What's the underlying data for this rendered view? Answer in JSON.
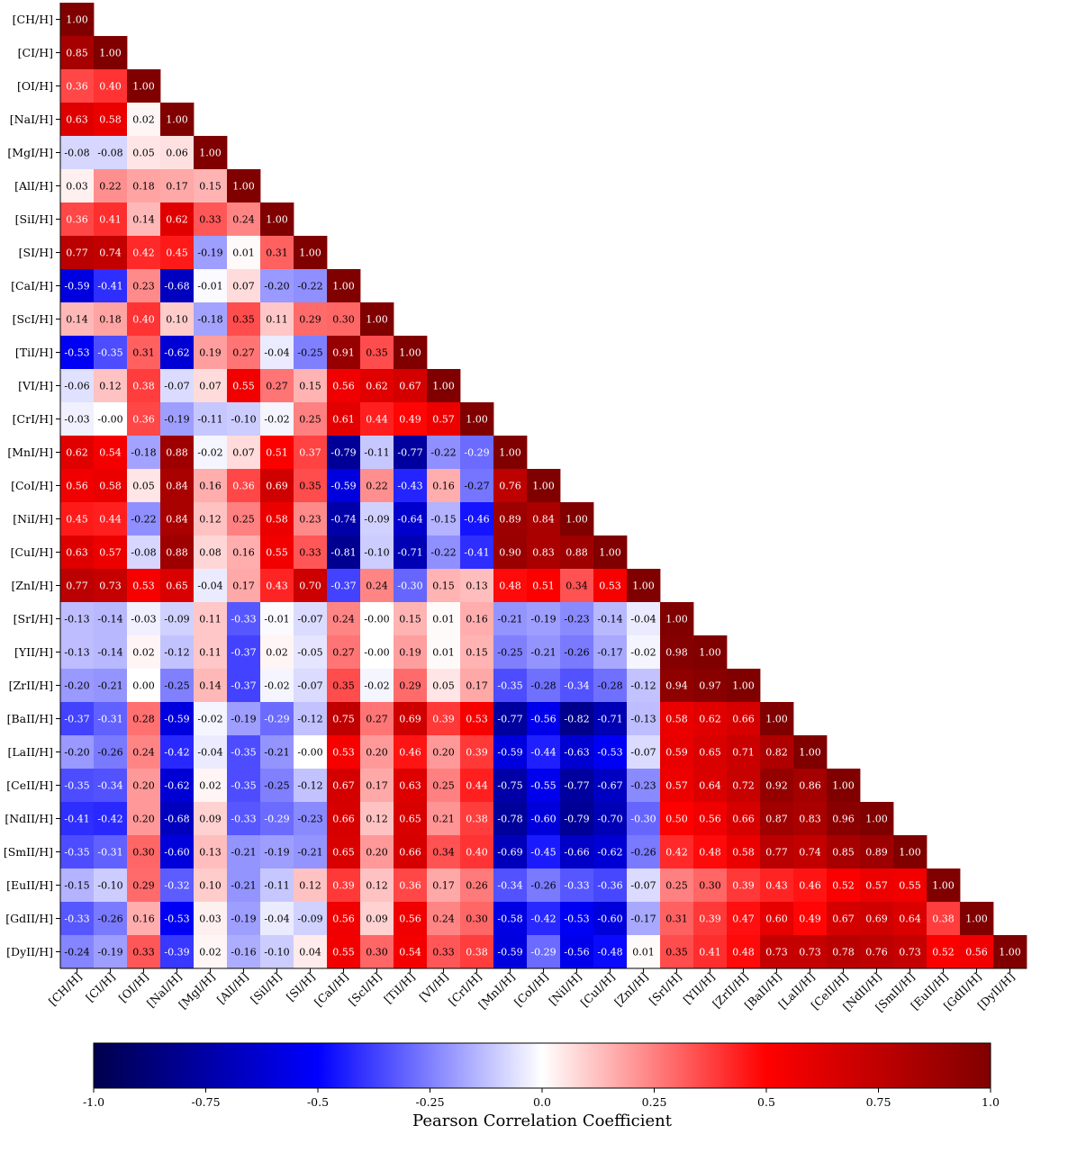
{
  "chart_data": {
    "type": "heatmap",
    "title": "",
    "labels": [
      "[CH/H]",
      "[CI/H]",
      "[OI/H]",
      "[NaI/H]",
      "[MgI/H]",
      "[AlI/H]",
      "[SiI/H]",
      "[SI/H]",
      "[CaI/H]",
      "[ScI/H]",
      "[TiI/H]",
      "[VI/H]",
      "[CrI/H]",
      "[MnI/H]",
      "[CoI/H]",
      "[NiI/H]",
      "[CuI/H]",
      "[ZnI/H]",
      "[SrI/H]",
      "[YII/H]",
      "[ZrII/H]",
      "[BaII/H]",
      "[LaII/H]",
      "[CeII/H]",
      "[NdII/H]",
      "[SmII/H]",
      "[EuII/H]",
      "[GdII/H]",
      "[DyII/H]"
    ],
    "matrix_lower_triangle": [
      [
        1.0
      ],
      [
        0.85,
        1.0
      ],
      [
        0.36,
        0.4,
        1.0
      ],
      [
        0.63,
        0.58,
        0.02,
        1.0
      ],
      [
        -0.08,
        -0.08,
        0.05,
        0.06,
        1.0
      ],
      [
        0.03,
        0.22,
        0.18,
        0.17,
        0.15,
        1.0
      ],
      [
        0.36,
        0.41,
        0.14,
        0.62,
        0.33,
        0.24,
        1.0
      ],
      [
        0.77,
        0.74,
        0.42,
        0.45,
        -0.19,
        0.01,
        0.31,
        1.0
      ],
      [
        -0.59,
        -0.41,
        0.23,
        -0.68,
        -0.01,
        0.07,
        -0.2,
        -0.22,
        1.0
      ],
      [
        0.14,
        0.18,
        0.4,
        0.1,
        -0.18,
        0.35,
        0.11,
        0.29,
        0.3,
        1.0
      ],
      [
        -0.53,
        -0.35,
        0.31,
        -0.62,
        0.19,
        0.27,
        -0.04,
        -0.25,
        0.91,
        0.35,
        1.0
      ],
      [
        -0.06,
        0.12,
        0.38,
        -0.07,
        0.07,
        0.55,
        0.27,
        0.15,
        0.56,
        0.62,
        0.67,
        1.0
      ],
      [
        -0.03,
        -0.0,
        0.36,
        -0.19,
        -0.11,
        -0.1,
        -0.02,
        0.25,
        0.61,
        0.44,
        0.49,
        0.57,
        1.0
      ],
      [
        0.62,
        0.54,
        -0.18,
        0.88,
        -0.02,
        0.07,
        0.51,
        0.37,
        -0.79,
        -0.11,
        -0.77,
        -0.22,
        -0.29,
        1.0
      ],
      [
        0.56,
        0.58,
        0.05,
        0.84,
        0.16,
        0.36,
        0.69,
        0.35,
        -0.59,
        0.22,
        -0.43,
        0.16,
        -0.27,
        0.76,
        1.0
      ],
      [
        0.45,
        0.44,
        -0.22,
        0.84,
        0.12,
        0.25,
        0.58,
        0.23,
        -0.74,
        -0.09,
        -0.64,
        -0.15,
        -0.46,
        0.89,
        0.84,
        1.0
      ],
      [
        0.63,
        0.57,
        -0.08,
        0.88,
        0.08,
        0.16,
        0.55,
        0.33,
        -0.81,
        -0.1,
        -0.71,
        -0.22,
        -0.41,
        0.9,
        0.83,
        0.88,
        1.0
      ],
      [
        0.77,
        0.73,
        0.53,
        0.65,
        -0.04,
        0.17,
        0.43,
        0.7,
        -0.37,
        0.24,
        -0.3,
        0.15,
        0.13,
        0.48,
        0.51,
        0.34,
        0.53,
        1.0
      ],
      [
        -0.13,
        -0.14,
        -0.03,
        -0.09,
        0.11,
        -0.33,
        -0.01,
        -0.07,
        0.24,
        -0.0,
        0.15,
        0.01,
        0.16,
        -0.21,
        -0.19,
        -0.23,
        -0.14,
        -0.04,
        1.0
      ],
      [
        -0.13,
        -0.14,
        0.02,
        -0.12,
        0.11,
        -0.37,
        0.02,
        -0.05,
        0.27,
        -0.0,
        0.19,
        0.01,
        0.15,
        -0.25,
        -0.21,
        -0.26,
        -0.17,
        -0.02,
        0.98,
        1.0
      ],
      [
        -0.2,
        -0.21,
        0.0,
        -0.25,
        0.14,
        -0.37,
        -0.02,
        -0.07,
        0.35,
        -0.02,
        0.29,
        0.05,
        0.17,
        -0.35,
        -0.28,
        -0.34,
        -0.28,
        -0.12,
        0.94,
        0.97,
        1.0
      ],
      [
        -0.37,
        -0.31,
        0.28,
        -0.59,
        -0.02,
        -0.19,
        -0.29,
        -0.12,
        0.75,
        0.27,
        0.69,
        0.39,
        0.53,
        -0.77,
        -0.56,
        -0.82,
        -0.71,
        -0.13,
        0.58,
        0.62,
        0.66,
        1.0
      ],
      [
        -0.2,
        -0.26,
        0.24,
        -0.42,
        -0.04,
        -0.35,
        -0.21,
        -0.0,
        0.53,
        0.2,
        0.46,
        0.2,
        0.39,
        -0.59,
        -0.44,
        -0.63,
        -0.53,
        -0.07,
        0.59,
        0.65,
        0.71,
        0.82,
        1.0
      ],
      [
        -0.35,
        -0.34,
        0.2,
        -0.62,
        0.02,
        -0.35,
        -0.25,
        -0.12,
        0.67,
        0.17,
        0.63,
        0.25,
        0.44,
        -0.75,
        -0.55,
        -0.77,
        -0.67,
        -0.23,
        0.57,
        0.64,
        0.72,
        0.92,
        0.86,
        1.0
      ],
      [
        -0.41,
        -0.42,
        0.2,
        -0.68,
        0.09,
        -0.33,
        -0.29,
        -0.23,
        0.66,
        0.12,
        0.65,
        0.21,
        0.38,
        -0.78,
        -0.6,
        -0.79,
        -0.7,
        -0.3,
        0.5,
        0.56,
        0.66,
        0.87,
        0.83,
        0.96,
        1.0
      ],
      [
        -0.35,
        -0.31,
        0.3,
        -0.6,
        0.13,
        -0.21,
        -0.19,
        -0.21,
        0.65,
        0.2,
        0.66,
        0.34,
        0.4,
        -0.69,
        -0.45,
        -0.66,
        -0.62,
        -0.26,
        0.42,
        0.48,
        0.58,
        0.77,
        0.74,
        0.85,
        0.89,
        1.0
      ],
      [
        -0.15,
        -0.1,
        0.29,
        -0.32,
        0.1,
        -0.21,
        -0.11,
        0.12,
        0.39,
        0.12,
        0.36,
        0.17,
        0.26,
        -0.34,
        -0.26,
        -0.33,
        -0.36,
        -0.07,
        0.25,
        0.3,
        0.39,
        0.43,
        0.46,
        0.52,
        0.57,
        0.55,
        1.0
      ],
      [
        -0.33,
        -0.26,
        0.16,
        -0.53,
        0.03,
        -0.19,
        -0.04,
        -0.09,
        0.56,
        0.09,
        0.56,
        0.24,
        0.3,
        -0.58,
        -0.42,
        -0.53,
        -0.6,
        -0.17,
        0.31,
        0.39,
        0.47,
        0.6,
        0.49,
        0.67,
        0.69,
        0.64,
        0.38,
        1.0
      ],
      [
        -0.24,
        -0.19,
        0.33,
        -0.39,
        0.02,
        -0.16,
        -0.1,
        0.04,
        0.55,
        0.3,
        0.54,
        0.33,
        0.38,
        -0.59,
        -0.29,
        -0.56,
        -0.48,
        0.01,
        0.35,
        0.41,
        0.48,
        0.73,
        0.73,
        0.78,
        0.76,
        0.73,
        0.52,
        0.56,
        1.0
      ]
    ],
    "cell_text": [
      [
        "1.00"
      ],
      [
        "0.85",
        "1.00"
      ],
      [
        "0.36",
        "0.40",
        "1.00"
      ],
      [
        "0.63",
        "0.58",
        "0.02",
        "1.00"
      ],
      [
        "-0.08",
        "-0.08",
        "0.05",
        "0.06",
        "1.00"
      ],
      [
        "0.03",
        "0.22",
        "0.18",
        "0.17",
        "0.15",
        "1.00"
      ],
      [
        "0.36",
        "0.41",
        "0.14",
        "0.62",
        "0.33",
        "0.24",
        "1.00"
      ],
      [
        "0.77",
        "0.74",
        "0.42",
        "0.45",
        "-0.19",
        "0.01",
        "0.31",
        "1.00"
      ],
      [
        "-0.59",
        "-0.41",
        "0.23",
        "-0.68",
        "-0.01",
        "0.07",
        "-0.20",
        "-0.22",
        "1.00"
      ],
      [
        "0.14",
        "0.18",
        "0.40",
        "0.10",
        "-0.18",
        "0.35",
        "0.11",
        "0.29",
        "0.30",
        "1.00"
      ],
      [
        "-0.53",
        "-0.35",
        "0.31",
        "-0.62",
        "0.19",
        "0.27",
        "-0.04",
        "-0.25",
        "0.91",
        "0.35",
        "1.00"
      ],
      [
        "-0.06",
        "0.12",
        "0.38",
        "-0.07",
        "0.07",
        "0.55",
        "0.27",
        "0.15",
        "0.56",
        "0.62",
        "0.67",
        "1.00"
      ],
      [
        "-0.03",
        "-0.00",
        "0.36",
        "-0.19",
        "-0.11",
        "-0.10",
        "-0.02",
        "0.25",
        "0.61",
        "0.44",
        "0.49",
        "0.57",
        "1.00"
      ],
      [
        "0.62",
        "0.54",
        "-0.18",
        "0.88",
        "-0.02",
        "0.07",
        "0.51",
        "0.37",
        "-0.79",
        "-0.11",
        "-0.77",
        "-0.22",
        "-0.29",
        "1.00"
      ],
      [
        "0.56",
        "0.58",
        "0.05",
        "0.84",
        "0.16",
        "0.36",
        "0.69",
        "0.35",
        "-0.59",
        "0.22",
        "-0.43",
        "0.16",
        "-0.27",
        "0.76",
        "1.00"
      ],
      [
        "0.45",
        "0.44",
        "-0.22",
        "0.84",
        "0.12",
        "0.25",
        "0.58",
        "0.23",
        "-0.74",
        "-0.09",
        "-0.64",
        "-0.15",
        "-0.46",
        "0.89",
        "0.84",
        "1.00"
      ],
      [
        "0.63",
        "0.57",
        "-0.08",
        "0.88",
        "0.08",
        "0.16",
        "0.55",
        "0.33",
        "-0.81",
        "-0.10",
        "-0.71",
        "-0.22",
        "-0.41",
        "0.90",
        "0.83",
        "0.88",
        "1.00"
      ],
      [
        "0.77",
        "0.73",
        "0.53",
        "0.65",
        "-0.04",
        "0.17",
        "0.43",
        "0.70",
        "-0.37",
        "0.24",
        "-0.30",
        "0.15",
        "0.13",
        "0.48",
        "0.51",
        "0.34",
        "0.53",
        "1.00"
      ],
      [
        "-0.13",
        "-0.14",
        "-0.03",
        "-0.09",
        "0.11",
        "-0.33",
        "-0.01",
        "-0.07",
        "0.24",
        "-0.00",
        "0.15",
        "0.01",
        "0.16",
        "-0.21",
        "-0.19",
        "-0.23",
        "-0.14",
        "-0.04",
        "1.00"
      ],
      [
        "-0.13",
        "-0.14",
        "0.02",
        "-0.12",
        "0.11",
        "-0.37",
        "0.02",
        "-0.05",
        "0.27",
        "-0.00",
        "0.19",
        "0.01",
        "0.15",
        "-0.25",
        "-0.21",
        "-0.26",
        "-0.17",
        "-0.02",
        "0.98",
        "1.00"
      ],
      [
        "-0.20",
        "-0.21",
        "0.00",
        "-0.25",
        "0.14",
        "-0.37",
        "-0.02",
        "-0.07",
        "0.35",
        "-0.02",
        "0.29",
        "0.05",
        "0.17",
        "-0.35",
        "-0.28",
        "-0.34",
        "-0.28",
        "-0.12",
        "0.94",
        "0.97",
        "1.00"
      ],
      [
        "-0.37",
        "-0.31",
        "0.28",
        "-0.59",
        "-0.02",
        "-0.19",
        "-0.29",
        "-0.12",
        "0.75",
        "0.27",
        "0.69",
        "0.39",
        "0.53",
        "-0.77",
        "-0.56",
        "-0.82",
        "-0.71",
        "-0.13",
        "0.58",
        "0.62",
        "0.66",
        "1.00"
      ],
      [
        "-0.20",
        "-0.26",
        "0.24",
        "-0.42",
        "-0.04",
        "-0.35",
        "-0.21",
        "-0.00",
        "0.53",
        "0.20",
        "0.46",
        "0.20",
        "0.39",
        "-0.59",
        "-0.44",
        "-0.63",
        "-0.53",
        "-0.07",
        "0.59",
        "0.65",
        "0.71",
        "0.82",
        "1.00"
      ],
      [
        "-0.35",
        "-0.34",
        "0.20",
        "-0.62",
        "0.02",
        "-0.35",
        "-0.25",
        "-0.12",
        "0.67",
        "0.17",
        "0.63",
        "0.25",
        "0.44",
        "-0.75",
        "-0.55",
        "-0.77",
        "-0.67",
        "-0.23",
        "0.57",
        "0.64",
        "0.72",
        "0.92",
        "0.86",
        "1.00"
      ],
      [
        "-0.41",
        "-0.42",
        "0.20",
        "-0.68",
        "0.09",
        "-0.33",
        "-0.29",
        "-0.23",
        "0.66",
        "0.12",
        "0.65",
        "0.21",
        "0.38",
        "-0.78",
        "-0.60",
        "-0.79",
        "-0.70",
        "-0.30",
        "0.50",
        "0.56",
        "0.66",
        "0.87",
        "0.83",
        "0.96",
        "1.00"
      ],
      [
        "-0.35",
        "-0.31",
        "0.30",
        "-0.60",
        "0.13",
        "-0.21",
        "-0.19",
        "-0.21",
        "0.65",
        "0.20",
        "0.66",
        "0.34",
        "0.40",
        "-0.69",
        "-0.45",
        "-0.66",
        "-0.62",
        "-0.26",
        "0.42",
        "0.48",
        "0.58",
        "0.77",
        "0.74",
        "0.85",
        "0.89",
        "1.00"
      ],
      [
        "-0.15",
        "-0.10",
        "0.29",
        "-0.32",
        "0.10",
        "-0.21",
        "-0.11",
        "0.12",
        "0.39",
        "0.12",
        "0.36",
        "0.17",
        "0.26",
        "-0.34",
        "-0.26",
        "-0.33",
        "-0.36",
        "-0.07",
        "0.25",
        "0.30",
        "0.39",
        "0.43",
        "0.46",
        "0.52",
        "0.57",
        "0.55",
        "1.00"
      ],
      [
        "-0.33",
        "-0.26",
        "0.16",
        "-0.53",
        "0.03",
        "-0.19",
        "-0.04",
        "-0.09",
        "0.56",
        "0.09",
        "0.56",
        "0.24",
        "0.30",
        "-0.58",
        "-0.42",
        "-0.53",
        "-0.60",
        "-0.17",
        "0.31",
        "0.39",
        "0.47",
        "0.60",
        "0.49",
        "0.67",
        "0.69",
        "0.64",
        "0.38",
        "1.00"
      ],
      [
        "-0.24",
        "-0.19",
        "0.33",
        "-0.39",
        "0.02",
        "-0.16",
        "-0.10",
        "0.04",
        "0.55",
        "0.30",
        "0.54",
        "0.33",
        "0.38",
        "-0.59",
        "-0.29",
        "-0.56",
        "-0.48",
        "0.01",
        "0.35",
        "0.41",
        "0.48",
        "0.73",
        "0.73",
        "0.78",
        "0.76",
        "0.73",
        "0.52",
        "0.56",
        "1.00"
      ]
    ],
    "colorbar": {
      "label": "Pearson Correlation Coefficient",
      "range": [
        -1.0,
        1.0
      ],
      "ticks": [
        -1.0,
        -0.75,
        -0.5,
        -0.25,
        0.0,
        0.25,
        0.5,
        0.75,
        1.0
      ],
      "tick_labels": [
        "-1.0",
        "-0.75",
        "-0.5",
        "-0.25",
        "0.0",
        "0.25",
        "0.5",
        "0.75",
        "1.0"
      ],
      "colormap": "seismic",
      "colormap_stops": [
        "#00004c",
        "#0000ff",
        "#ffffff",
        "#ff0000",
        "#800000"
      ],
      "placement": "bottom"
    },
    "grid": false,
    "legend": "none"
  }
}
